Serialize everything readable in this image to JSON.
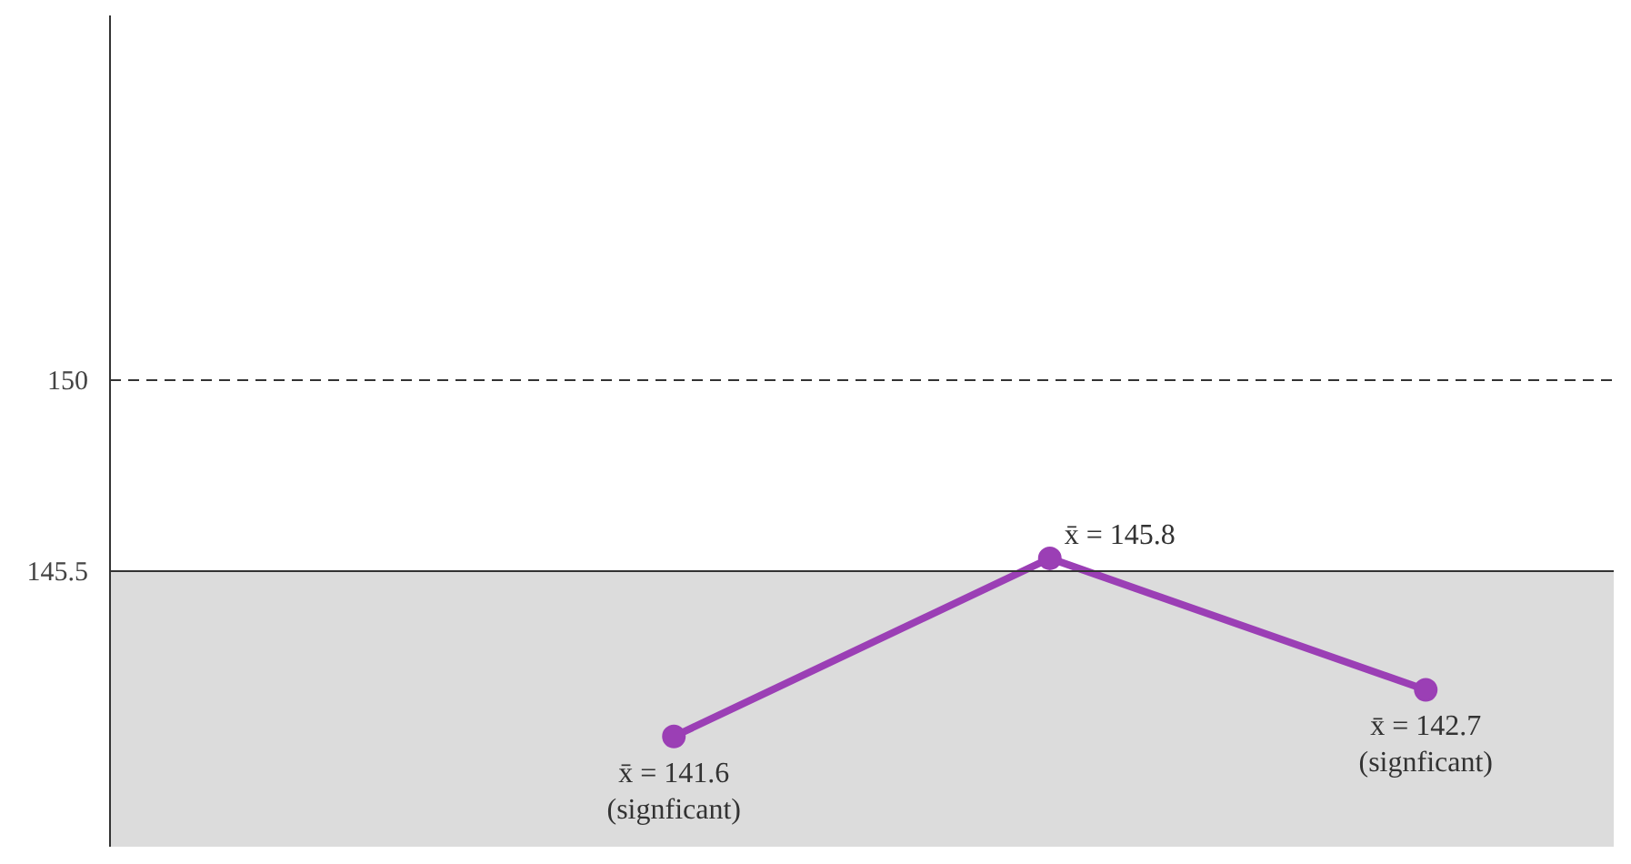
{
  "chart_data": {
    "type": "line",
    "tick_labels": "y",
    "grid": false,
    "marker": "circle",
    "categories": [
      null,
      null,
      null,
      null
    ],
    "ylim": [
      139.0,
      158.6
    ],
    "yticks": [
      150,
      145.5
    ],
    "series": [
      {
        "color": "#9b3fb5",
        "values": [
          null,
          141.6,
          145.8,
          142.7
        ],
        "value_labels": [
          null,
          "x̄ = 141.6\n(signficant)",
          "x̄ = 145.8",
          "x̄ = 142.7\n(signficant)"
        ]
      }
    ],
    "ref_lines": [
      {
        "axis": "y",
        "value": 150,
        "line_style": "dashed",
        "color": "#333333"
      },
      {
        "axis": "y",
        "value": 145.5,
        "line_style": "solid",
        "color": "#333333"
      }
    ],
    "bands": [
      {
        "axis": "y",
        "from": 139.0,
        "to": 145.5,
        "color": "#dcdcdc"
      }
    ]
  }
}
